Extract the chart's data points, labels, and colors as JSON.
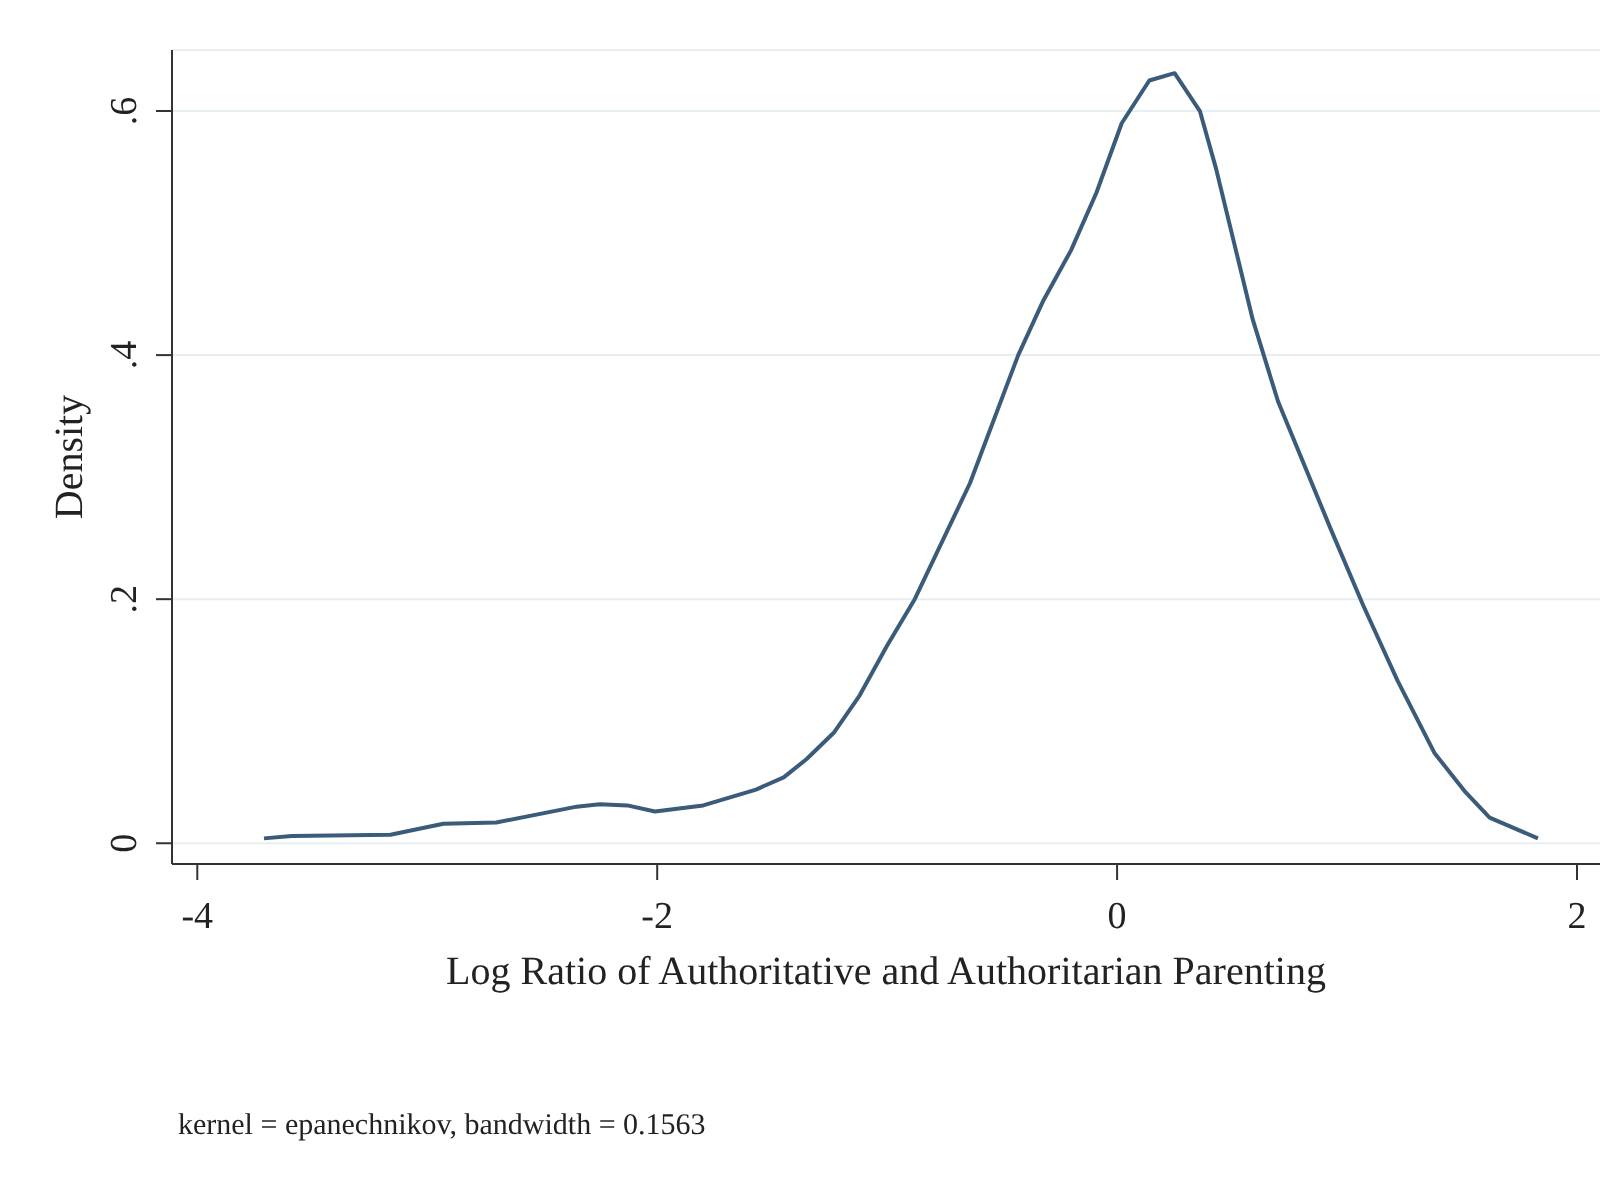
{
  "chart_data": {
    "type": "line",
    "xlabel": "Log Ratio of Authoritative and Authoritarian Parenting",
    "ylabel": "Density",
    "annotations": [
      "kernel = epanechnikov, bandwidth = 0.1563"
    ],
    "x": [
      -3.71,
      -3.59,
      -3.16,
      -2.93,
      -2.7,
      -2.35,
      -2.25,
      -2.13,
      -2.01,
      -1.8,
      -1.57,
      -1.45,
      -1.35,
      -1.23,
      -1.12,
      -1.0,
      -0.88,
      -0.64,
      -0.43,
      -0.32,
      -0.2,
      -0.09,
      0.02,
      0.14,
      0.25,
      0.36,
      0.43,
      0.59,
      0.7,
      0.93,
      1.07,
      1.22,
      1.38,
      1.51,
      1.62,
      1.83
    ],
    "series": [
      {
        "color": "#3b5b7a",
        "values": [
          0.004,
          0.006,
          0.007,
          0.016,
          0.017,
          0.03,
          0.032,
          0.031,
          0.026,
          0.031,
          0.044,
          0.054,
          0.069,
          0.091,
          0.121,
          0.162,
          0.2,
          0.295,
          0.4,
          0.445,
          0.486,
          0.533,
          0.59,
          0.625,
          0.631,
          0.6,
          0.553,
          0.429,
          0.362,
          0.257,
          0.195,
          0.133,
          0.074,
          0.043,
          0.021,
          0.004
        ]
      }
    ],
    "xlim": [
      -4.11,
      2.1
    ],
    "ylim": [
      -0.017,
      0.65
    ],
    "xticks": [
      -4,
      -2,
      0,
      2
    ],
    "yticks": [
      {
        "value": 0,
        "label": "0"
      },
      {
        "value": 0.2,
        "label": ".2"
      },
      {
        "value": 0.4,
        "label": ".4"
      },
      {
        "value": 0.6,
        "label": ".6"
      }
    ],
    "grid": "y",
    "marker": "none",
    "line_style": "solid"
  }
}
